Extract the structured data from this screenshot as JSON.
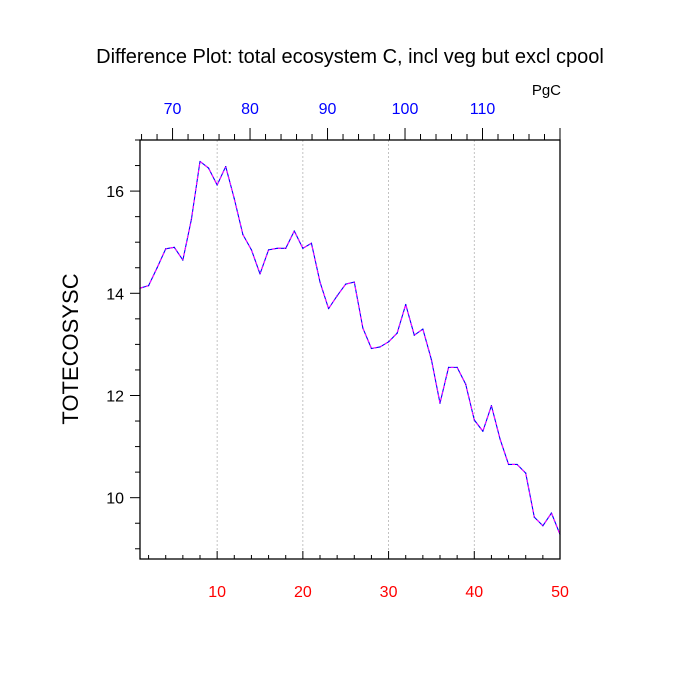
{
  "chart_data": {
    "type": "line",
    "title": "Difference Plot: total ecosystem C, incl veg but excl cpool",
    "units": "PgC",
    "ylabel": "TOTECOSYSC",
    "xlabel": "",
    "xlim": [
      1,
      50
    ],
    "ylim": [
      8.8,
      17.0
    ],
    "x_ticks": [
      10,
      20,
      30,
      40,
      50
    ],
    "y_ticks": [
      10,
      12,
      14,
      16
    ],
    "top_axis": {
      "range": [
        65.8,
        120.0
      ],
      "ticks": [
        70,
        80,
        90,
        100,
        110
      ]
    },
    "grid": "vertical-dashed",
    "colors": {
      "bottom_ticks": "#ff0000",
      "top_ticks": "#0000ff",
      "line_primary": "#0000ff",
      "line_secondary": "#ff00ff"
    },
    "x": [
      1,
      2,
      3,
      4,
      5,
      6,
      7,
      8,
      9,
      10,
      11,
      12,
      13,
      14,
      15,
      16,
      17,
      18,
      19,
      20,
      21,
      22,
      23,
      24,
      25,
      26,
      27,
      28,
      29,
      30,
      31,
      32,
      33,
      34,
      35,
      36,
      37,
      38,
      39,
      40,
      41,
      42,
      43,
      44,
      45,
      46,
      47,
      48,
      49,
      50
    ],
    "series": [
      {
        "values": [
          14.1,
          14.15,
          14.5,
          14.87,
          14.9,
          14.65,
          15.45,
          16.58,
          16.45,
          16.12,
          16.48,
          15.85,
          15.15,
          14.85,
          14.38,
          14.85,
          14.88,
          14.88,
          15.22,
          14.88,
          14.98,
          14.22,
          13.7,
          13.95,
          14.18,
          14.22,
          13.32,
          12.92,
          12.95,
          13.05,
          13.22,
          13.78,
          13.18,
          13.3,
          12.7,
          11.85,
          12.55,
          12.55,
          12.22,
          11.52,
          11.3,
          11.8,
          11.15,
          10.65,
          10.65,
          10.48,
          9.62,
          9.45,
          9.7,
          9.28
        ]
      }
    ]
  }
}
